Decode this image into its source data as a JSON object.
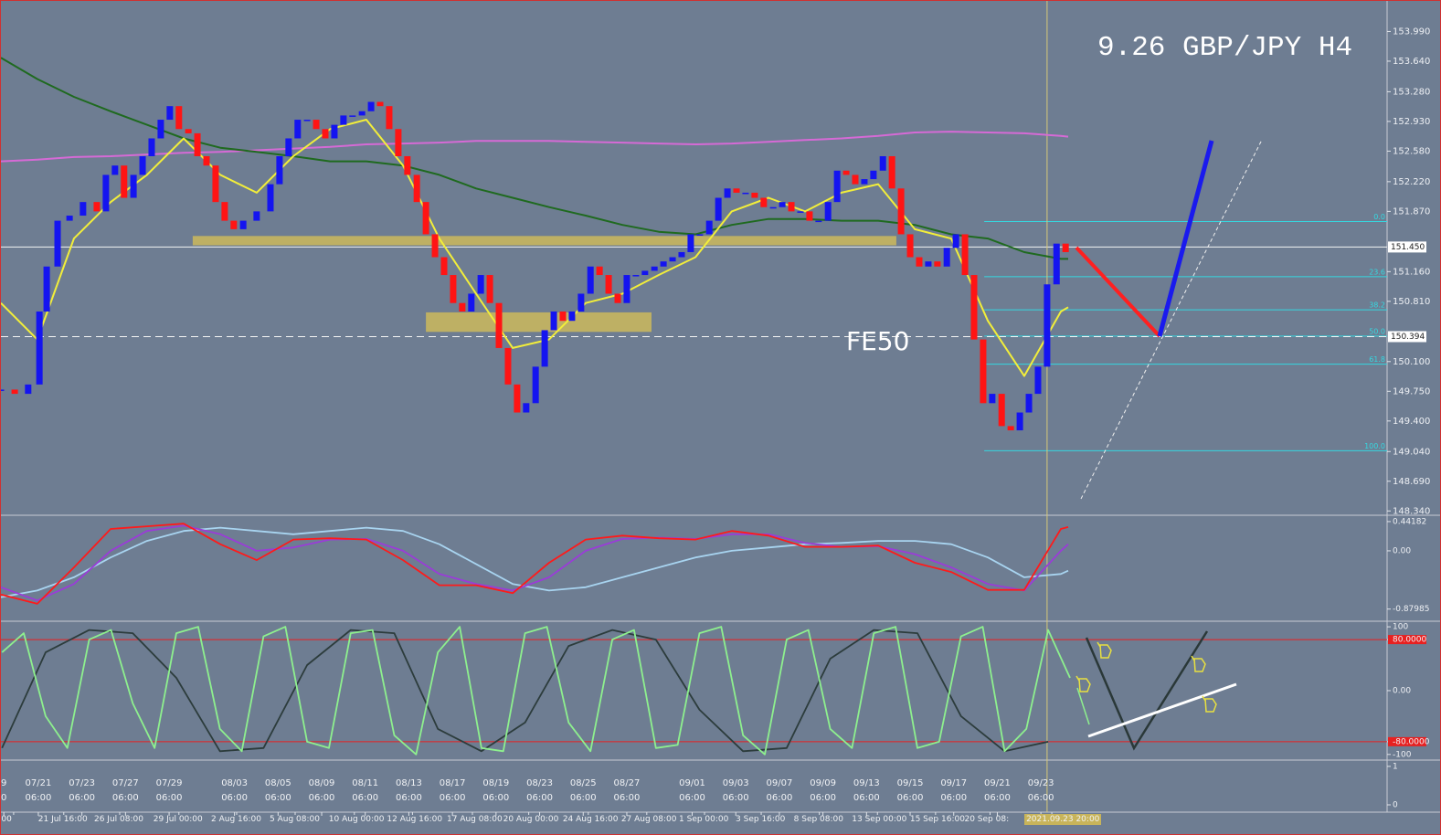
{
  "chart_data": [
    {
      "type": "line",
      "title": "9.26 GBP/JPY H4",
      "annotation": "FE50",
      "xlim": [
        -10.3,
        371.3
      ],
      "ylim": [
        148.3,
        154.35
      ],
      "yticks": [
        {
          "value": 153.99,
          "label": "153.990"
        },
        {
          "value": 153.64,
          "label": "153.640"
        },
        {
          "value": 153.28,
          "label": "153.280"
        },
        {
          "value": 152.93,
          "label": "152.930"
        },
        {
          "value": 152.58,
          "label": "152.580"
        },
        {
          "value": 152.22,
          "label": "152.220"
        },
        {
          "value": 151.87,
          "label": "151.870"
        },
        {
          "value": 151.16,
          "label": "151.160"
        },
        {
          "value": 150.81,
          "label": "150.810"
        },
        {
          "value": 150.1,
          "label": "150.100"
        },
        {
          "value": 149.75,
          "label": "149.750"
        },
        {
          "value": 149.4,
          "label": "149.400"
        },
        {
          "value": 149.04,
          "label": "149.040"
        },
        {
          "value": 148.69,
          "label": "148.690"
        },
        {
          "value": 148.34,
          "label": "148.340"
        }
      ],
      "xticks": [
        {
          "value": -9.5,
          "label": "9\n0"
        },
        {
          "value": 0,
          "label": "07/21\n06:00"
        },
        {
          "value": 12,
          "label": "07/23\n06:00"
        },
        {
          "value": 24,
          "label": "07/27\n06:00"
        },
        {
          "value": 36,
          "label": "07/29\n06:00"
        },
        {
          "value": 54,
          "label": "08/03\n06:00"
        },
        {
          "value": 66,
          "label": "08/05\n06:00"
        },
        {
          "value": 78,
          "label": "08/09\n06:00"
        },
        {
          "value": 90,
          "label": "08/11\n06:00"
        },
        {
          "value": 102,
          "label": "08/13\n06:00"
        },
        {
          "value": 114,
          "label": "08/17\n06:00"
        },
        {
          "value": 126,
          "label": "08/19\n06:00"
        },
        {
          "value": 138,
          "label": "08/23\n06:00"
        },
        {
          "value": 150,
          "label": "08/25\n06:00"
        },
        {
          "value": 162,
          "label": "08/27\n06:00"
        },
        {
          "value": 180,
          "label": "09/01\n06:00"
        },
        {
          "value": 192,
          "label": "09/03\n06:00"
        },
        {
          "value": 204,
          "label": "09/07\n06:00"
        },
        {
          "value": 216,
          "label": "09/09\n06:00"
        },
        {
          "value": 228,
          "label": "09/13\n06:00"
        },
        {
          "value": 240,
          "label": "09/15\n06:00"
        },
        {
          "value": 252,
          "label": "09/17\n06:00"
        },
        {
          "value": 264,
          "label": "09/21\n06:00"
        },
        {
          "value": 276,
          "label": "09/23\n06:00"
        }
      ],
      "xticks2": [
        {
          "value": -6.8,
          "label": "00:00"
        },
        {
          "value": 7,
          "label": "21 Jul 16:00"
        },
        {
          "value": 22.4,
          "label": "26 Jul 08:00"
        },
        {
          "value": 38.7,
          "label": "29 Jul 00:00"
        },
        {
          "value": 54.6,
          "label": "2 Aug 16:00"
        },
        {
          "value": 70.7,
          "label": "5 Aug 08:00"
        },
        {
          "value": 87,
          "label": "10 Aug 00:00"
        },
        {
          "value": 103,
          "label": "12 Aug 16:00"
        },
        {
          "value": 119.5,
          "label": "17 Aug 08:00"
        },
        {
          "value": 135,
          "label": "20 Aug 00:00"
        },
        {
          "value": 151.4,
          "label": "24 Aug 16:00"
        },
        {
          "value": 167.5,
          "label": "27 Aug 08:00"
        },
        {
          "value": 183.4,
          "label": "1 Sep 00:00"
        },
        {
          "value": 199,
          "label": "3 Sep 16:00"
        },
        {
          "value": 215,
          "label": "8 Sep 08:00"
        },
        {
          "value": 231,
          "label": "13 Sep 00:00"
        },
        {
          "value": 247,
          "label": "15 Sep 16:00"
        },
        {
          "value": 262,
          "label": "20 Sep 08:"
        },
        {
          "value": 279,
          "label": "2021.09.23 20:00",
          "color": "#c8b45a"
        }
      ],
      "x": [
        -10.3,
        -0.3,
        9.8,
        19.9,
        29.9,
        40.0,
        50.1,
        60.1,
        70.2,
        80.3,
        90.3,
        100.4,
        110.4,
        120.5,
        130.6,
        140.6,
        150.7,
        160.8,
        170.8,
        180.9,
        190.9,
        201.0,
        211.1,
        221.1,
        231.2,
        241.3,
        251.3,
        261.4,
        271.4,
        281.5,
        283.5
      ],
      "series": [
        {
          "color": "#d66ad6",
          "values": [
            152.46,
            152.48,
            152.51,
            152.52,
            152.54,
            152.56,
            152.57,
            152.59,
            152.61,
            152.63,
            152.66,
            152.67,
            152.68,
            152.7,
            152.7,
            152.7,
            152.69,
            152.68,
            152.67,
            152.66,
            152.67,
            152.69,
            152.71,
            152.73,
            152.76,
            152.8,
            152.81,
            152.8,
            152.79,
            152.76,
            152.75
          ]
        },
        {
          "color": "#1f6a1f",
          "values": [
            153.68,
            153.43,
            153.22,
            153.05,
            152.89,
            152.73,
            152.62,
            152.57,
            152.52,
            152.46,
            152.46,
            152.41,
            152.3,
            152.14,
            152.03,
            151.92,
            151.82,
            151.71,
            151.63,
            151.6,
            151.71,
            151.78,
            151.78,
            151.76,
            151.76,
            151.71,
            151.6,
            151.55,
            151.39,
            151.31,
            151.31
          ]
        },
        {
          "color": "#f2ee3a",
          "values": [
            150.79,
            150.36,
            151.55,
            151.98,
            152.3,
            152.73,
            152.3,
            152.09,
            152.52,
            152.84,
            152.95,
            152.41,
            151.55,
            150.9,
            150.26,
            150.36,
            150.79,
            150.9,
            151.12,
            151.33,
            151.87,
            152.03,
            151.87,
            152.09,
            152.19,
            151.66,
            151.55,
            150.58,
            149.93,
            150.69,
            150.74
          ]
        },
        {
          "style": "candles",
          "up_color": "#1414f0",
          "down_color": "#ff1414",
          "x": [
            -10.3,
            -6.5,
            -2.8,
            0.3,
            2.3,
            5.3,
            8.6,
            12.3,
            16.1,
            18.6,
            21.1,
            23.6,
            26.2,
            28.7,
            31.2,
            33.7,
            36.2,
            38.7,
            41.3,
            43.8,
            46.3,
            48.8,
            51.3,
            53.8,
            56.4,
            60.1,
            63.9,
            66.4,
            68.9,
            71.4,
            74.0,
            76.5,
            79.0,
            81.5,
            84.0,
            86.5,
            89.1,
            91.6,
            94.1,
            96.6,
            99.1,
            101.6,
            104.2,
            106.7,
            109.2,
            111.7,
            114.2,
            116.7,
            119.2,
            121.8,
            124.3,
            126.8,
            129.3,
            131.8,
            134.3,
            136.9,
            139.4,
            141.9,
            144.4,
            146.9,
            149.4,
            152.0,
            154.5,
            157.0,
            159.5,
            162.0,
            164.5,
            167.0,
            169.6,
            172.1,
            174.6,
            177.1,
            179.6,
            182.1,
            184.7,
            187.2,
            189.7,
            192.2,
            194.7,
            197.2,
            199.7,
            202.3,
            204.8,
            207.3,
            209.8,
            212.3,
            214.8,
            217.4,
            219.9,
            222.4,
            224.9,
            227.4,
            229.9,
            232.5,
            235.0,
            237.5,
            240.0,
            242.5,
            245.0,
            247.5,
            250.1,
            252.6,
            255.1,
            257.6,
            260.1,
            262.6,
            265.2,
            267.7,
            270.2,
            272.7,
            275.2,
            277.7,
            280.3,
            282.8
          ],
          "values": [
            149.77,
            149.72,
            149.83,
            150.69,
            151.22,
            151.76,
            151.82,
            151.98,
            151.87,
            152.3,
            152.41,
            152.03,
            152.3,
            152.52,
            152.73,
            152.95,
            153.11,
            152.84,
            152.79,
            152.52,
            152.41,
            151.98,
            151.76,
            151.66,
            151.76,
            151.87,
            152.19,
            152.52,
            152.73,
            152.95,
            152.95,
            152.84,
            152.73,
            152.89,
            153.0,
            153.0,
            153.05,
            153.16,
            153.11,
            152.84,
            152.52,
            152.3,
            151.98,
            151.6,
            151.33,
            151.12,
            150.79,
            150.69,
            150.9,
            151.12,
            150.79,
            150.26,
            149.83,
            149.5,
            149.61,
            150.04,
            150.47,
            150.69,
            150.58,
            150.69,
            150.9,
            151.22,
            151.12,
            150.9,
            150.79,
            151.12,
            151.12,
            151.17,
            151.22,
            151.28,
            151.33,
            151.39,
            151.6,
            151.6,
            151.76,
            152.03,
            152.14,
            152.09,
            152.09,
            152.03,
            151.92,
            151.92,
            151.98,
            151.87,
            151.87,
            151.76,
            151.76,
            151.98,
            152.35,
            152.3,
            152.19,
            152.25,
            152.35,
            152.52,
            152.14,
            151.6,
            151.33,
            151.22,
            151.28,
            151.22,
            151.44,
            151.6,
            151.12,
            150.36,
            149.61,
            149.72,
            149.34,
            149.29,
            149.5,
            149.72,
            150.04,
            151.01,
            151.49,
            151.39
          ]
        }
      ],
      "zones": [
        {
          "x": [
            42.5,
            236.2
          ],
          "y": [
            151.47,
            151.58
          ],
          "color": "#cdb95c"
        },
        {
          "x": [
            106.7,
            168.8
          ],
          "y": [
            150.45,
            150.68
          ],
          "color": "#cdb95c"
        }
      ],
      "price_lines": [
        {
          "value": 151.45,
          "label": "151.450",
          "style": "solid"
        },
        {
          "value": 150.394,
          "label": "150.394",
          "style": "dashed"
        }
      ],
      "fib": {
        "start": 260.4,
        "color": "#35d8e0",
        "levels": [
          {
            "label": "0.0",
            "value": 151.75
          },
          {
            "label": "23.6",
            "value": 151.1
          },
          {
            "label": "38.2",
            "value": 150.71
          },
          {
            "label": "50.0",
            "value": 150.4
          },
          {
            "label": "61.8",
            "value": 150.07
          },
          {
            "label": "100.0",
            "value": 149.05
          }
        ]
      },
      "cursor_x": 277.7
    },
    {
      "type": "line",
      "ylim": [
        -1.036,
        0.51
      ],
      "yticks": [
        0.44182,
        {
          "value": 0,
          "label": "0.00"
        },
        -0.87985
      ],
      "x": [
        -10.3,
        -0.3,
        9.8,
        19.9,
        29.9,
        40.0,
        50.1,
        60.1,
        70.2,
        80.3,
        90.3,
        100.4,
        110.4,
        120.5,
        130.6,
        140.6,
        150.7,
        160.8,
        170.8,
        180.9,
        190.9,
        201.0,
        211.1,
        221.1,
        231.2,
        241.3,
        251.3,
        261.4,
        271.4,
        281.5,
        283.5
      ],
      "series": [
        {
          "color": "#a8d4f0",
          "values": [
            -0.7,
            -0.6,
            -0.4,
            -0.1,
            0.15,
            0.3,
            0.35,
            0.3,
            0.25,
            0.3,
            0.35,
            0.3,
            0.1,
            -0.2,
            -0.5,
            -0.6,
            -0.55,
            -0.4,
            -0.25,
            -0.1,
            0.0,
            0.05,
            0.1,
            0.12,
            0.15,
            0.15,
            0.1,
            -0.1,
            -0.4,
            -0.35,
            -0.3
          ]
        },
        {
          "color": "#9a3cd8",
          "values": [
            -0.55,
            -0.75,
            -0.5,
            0.0,
            0.3,
            0.38,
            0.25,
            0.0,
            0.05,
            0.17,
            0.18,
            0.0,
            -0.35,
            -0.5,
            -0.6,
            -0.4,
            0.0,
            0.18,
            0.2,
            0.18,
            0.25,
            0.25,
            0.12,
            0.06,
            0.07,
            -0.05,
            -0.25,
            -0.5,
            -0.6,
            0.0,
            0.1
          ]
        },
        {
          "color": "#ff1a1a",
          "values": [
            -0.66,
            -0.8,
            -0.25,
            0.33,
            0.37,
            0.41,
            0.1,
            -0.14,
            0.17,
            0.19,
            0.17,
            -0.14,
            -0.52,
            -0.52,
            -0.64,
            -0.18,
            0.17,
            0.23,
            0.19,
            0.17,
            0.3,
            0.23,
            0.06,
            0.06,
            0.08,
            -0.18,
            -0.32,
            -0.59,
            -0.59,
            0.33,
            0.36
          ]
        }
      ]
    },
    {
      "type": "line",
      "ylim": [
        -107.4,
        105.9
      ],
      "yticks": [
        100,
        {
          "value": 80,
          "label": "80.0000",
          "color": "#e82020"
        },
        {
          "value": 0,
          "label": "0.00"
        },
        {
          "value": -80,
          "label": "-80.0000",
          "color": "#e82020"
        },
        -100
      ],
      "series": [
        {
          "color": "#2c3c3c",
          "x": [
            -10,
            2,
            14,
            26,
            38,
            50,
            62,
            74,
            86,
            98,
            110,
            122,
            134,
            146,
            158,
            170,
            182,
            194,
            206,
            218,
            230,
            242,
            254,
            266,
            278
          ],
          "values": [
            -90,
            60,
            95,
            90,
            20,
            -95,
            -90,
            40,
            95,
            90,
            -60,
            -95,
            -50,
            70,
            95,
            80,
            -30,
            -95,
            -90,
            50,
            95,
            90,
            -40,
            -95,
            -80
          ]
        },
        {
          "color": "#8ef08e",
          "x": [
            -10,
            -4,
            2,
            8,
            14,
            20,
            26,
            32,
            38,
            44,
            50,
            56,
            62,
            68,
            74,
            80,
            86,
            92,
            98,
            104,
            110,
            116,
            122,
            128,
            134,
            140,
            146,
            152,
            158,
            164,
            170,
            176,
            182,
            188,
            194,
            200,
            206,
            212,
            218,
            224,
            230,
            236,
            242,
            248,
            254,
            260,
            266,
            272,
            278,
            284
          ],
          "values": [
            60,
            90,
            -40,
            -90,
            80,
            95,
            -20,
            -90,
            90,
            100,
            -60,
            -95,
            85,
            100,
            -80,
            -90,
            90,
            95,
            -70,
            -100,
            60,
            100,
            -90,
            -95,
            90,
            100,
            -50,
            -95,
            80,
            95,
            -90,
            -85,
            90,
            100,
            -70,
            -100,
            80,
            95,
            -60,
            -90,
            90,
            100,
            -90,
            -80,
            85,
            100,
            -95,
            -60,
            95,
            20
          ]
        }
      ]
    },
    {
      "type": "line",
      "ylim": [
        -0.19,
        1.14
      ],
      "yticks": [
        1,
        0
      ]
    }
  ]
}
